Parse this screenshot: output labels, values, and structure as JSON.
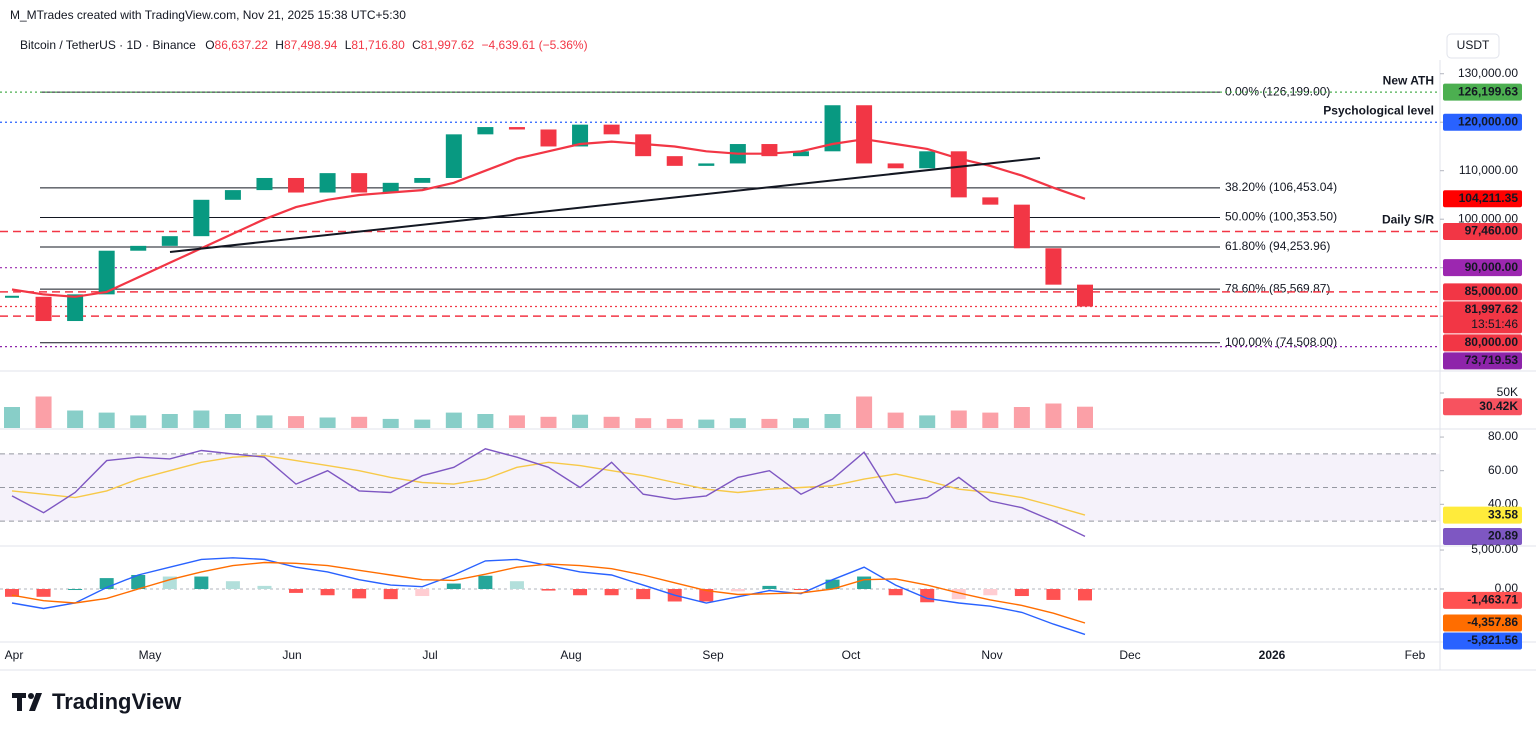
{
  "header": {
    "attribution": "M_MTrades created with TradingView.com, Nov 21, 2025 15:38 UTC+5:30",
    "symbol": "Bitcoin / TetherUS · 1D · Binance",
    "ohlc": [
      {
        "key": "O",
        "value": "86,637.22"
      },
      {
        "key": "H",
        "value": "87,498.94"
      },
      {
        "key": "L",
        "value": "81,716.80"
      },
      {
        "key": "C",
        "value": "81,997.62"
      }
    ],
    "change": "−4,639.61 (−5.36%)",
    "currency": "USDT"
  },
  "time_axis": [
    "Apr",
    "May",
    "Jun",
    "Jul",
    "Aug",
    "Sep",
    "Oct",
    "Nov",
    "Dec",
    "2026",
    "Feb"
  ],
  "chart_data": [
    {
      "type": "candles",
      "ylim": [
        68900,
        131800
      ],
      "yticks": [
        {
          "value": 130000,
          "label": "130,000.00"
        },
        {
          "value": 120000,
          "label": "120,000.00"
        },
        {
          "value": 110000,
          "label": "110,000.00"
        },
        {
          "value": 100000,
          "label": "100,000.00"
        },
        {
          "value": 90000,
          "label": "90,000.00"
        },
        {
          "value": 80000,
          "label": "80,000.00"
        }
      ],
      "series": [
        {
          "kind": "candles",
          "up_color": "#089981",
          "down_color": "#f23645",
          "values": [
            84000,
            79000,
            84500,
            93500,
            94500,
            96500,
            104000,
            106000,
            108500,
            105500,
            109500,
            105500,
            107500,
            108500,
            117500,
            119000,
            118500,
            115000,
            119500,
            117500,
            113000,
            111000,
            111500,
            115500,
            113000,
            114000,
            123500,
            111500,
            110500,
            114000,
            104500,
            103000,
            94000,
            86500,
            82000
          ]
        },
        {
          "kind": "line",
          "color": "#f23645",
          "values": [
            85500,
            84500,
            84000,
            85000,
            88000,
            91000,
            94000,
            97000,
            100000,
            102500,
            104000,
            105000,
            105500,
            106000,
            107500,
            110000,
            112500,
            114000,
            115500,
            116000,
            115500,
            115000,
            114000,
            113500,
            113500,
            114000,
            115500,
            116500,
            115500,
            114500,
            112500,
            111000,
            109000,
            106500,
            104200
          ]
        }
      ],
      "fib_levels": [
        {
          "value": 126199,
          "label": "0.00% (126,199.00)"
        },
        {
          "value": 106453.04,
          "label": "38.20% (106,453.04)"
        },
        {
          "value": 100353.5,
          "label": "50.00% (100,353.50)"
        },
        {
          "value": 94253.96,
          "label": "61.80% (94,253.96)"
        },
        {
          "value": 85569.87,
          "label": "78.60% (85,569.87)"
        },
        {
          "value": 74508,
          "label": "100.00% (74,508.00)"
        }
      ],
      "price_labels": [
        {
          "value": 126199.63,
          "label": "126,199.63",
          "color": "#4caf50",
          "line": "dotted",
          "note": "New ATH"
        },
        {
          "value": 120000,
          "label": "120,000.00",
          "color": "#2962ff",
          "line": "dotted",
          "note": "Psychological level"
        },
        {
          "value": 104211.35,
          "label": "104,211.35",
          "color": "#ff0000",
          "line": "none"
        },
        {
          "value": 97460,
          "label": "97,460.00",
          "color": "#f23645",
          "line": "dashed",
          "note": "Daily S/R"
        },
        {
          "value": 90000,
          "label": "90,000.00",
          "color": "#9c27b0",
          "line": "dotted"
        },
        {
          "value": 85000,
          "label": "85,000.00",
          "color": "#f23645",
          "line": "dashed"
        },
        {
          "value": 81997.62,
          "label": "81,997.62",
          "color": "#f23645",
          "line": "dotted",
          "countdown": "13:51:46"
        },
        {
          "value": 80000,
          "label": "80,000.00",
          "color": "#f23645",
          "line": "dashed"
        },
        {
          "value": 73719.53,
          "label": "73,719.53",
          "color": "#8e24aa",
          "line": "dotted"
        }
      ]
    },
    {
      "type": "volume",
      "ylim": [
        0,
        80000
      ],
      "yticks": [
        {
          "value": 50000,
          "label": "50K"
        }
      ],
      "up_color": "#26a69a",
      "down_color": "#f7525f",
      "values": [
        30000,
        45000,
        25000,
        22000,
        18000,
        20000,
        25000,
        20000,
        18000,
        17000,
        15000,
        16000,
        13000,
        12000,
        22000,
        20000,
        18000,
        16000,
        19000,
        16000,
        14000,
        13000,
        12000,
        14000,
        13000,
        14000,
        20000,
        45000,
        22000,
        18000,
        25000,
        22000,
        30000,
        35000,
        30420
      ],
      "price_labels": [
        {
          "value": 30420,
          "label": "30.42K",
          "color": "#f7525f"
        }
      ]
    },
    {
      "type": "rsi",
      "ylim": [
        15.8,
        84.2
      ],
      "yticks": [
        {
          "value": 80,
          "label": "80.00"
        },
        {
          "value": 60,
          "label": "60.00"
        },
        {
          "value": 40,
          "label": "40.00"
        }
      ],
      "bands": [
        70,
        50,
        30
      ],
      "band_color": "#7e57c2",
      "series": [
        {
          "color": "#7e57c2",
          "values": [
            45,
            35,
            47,
            66,
            68,
            67,
            72,
            70,
            68,
            52,
            60,
            48,
            47,
            57,
            62,
            73,
            68,
            62,
            50,
            65,
            46,
            43,
            45,
            56,
            60,
            46,
            55,
            71,
            41,
            44,
            56,
            42,
            38,
            30,
            20.89
          ]
        },
        {
          "color": "#f7c948",
          "values": [
            48,
            46,
            44,
            48,
            55,
            60,
            65,
            68,
            69,
            66,
            63,
            60,
            56,
            53,
            52,
            55,
            62,
            65,
            63,
            60,
            57,
            53,
            49,
            47,
            49,
            50,
            51,
            55,
            58,
            54,
            49,
            47,
            44,
            39,
            33.58
          ]
        }
      ],
      "price_labels": [
        {
          "value": 33.58,
          "label": "33.58",
          "color": "#ffeb3b",
          "text_color": "#131722"
        },
        {
          "value": 20.89,
          "label": "20.89",
          "color": "#7e57c2"
        }
      ]
    },
    {
      "type": "macd",
      "ylim": [
        -6540,
        5260
      ],
      "yticks": [
        {
          "value": 5000,
          "label": "5,000.00"
        },
        {
          "value": 0,
          "label": "0.00"
        }
      ],
      "histogram": [
        -1000,
        -1000,
        0,
        1400,
        1800,
        1600,
        1600,
        1000,
        400,
        -500,
        -800,
        -1200,
        -1300,
        -900,
        700,
        1700,
        1000,
        -200,
        -800,
        -800,
        -1300,
        -1600,
        -1600,
        -300,
        400,
        -100,
        1200,
        1600,
        -800,
        -1700,
        -1300,
        -800,
        -900,
        -1400,
        -1463.71
      ],
      "histogram_colors": [
        "#26a69a",
        "#b2dfdb",
        "#ff5252",
        "#ffcdd2"
      ],
      "series": [
        {
          "color": "#2962ff",
          "values": [
            -1800,
            -2500,
            -1800,
            200,
            1800,
            2800,
            3800,
            4000,
            3800,
            2800,
            2200,
            1200,
            500,
            300,
            1800,
            3600,
            3800,
            3000,
            2200,
            1800,
            500,
            -800,
            -1800,
            -1000,
            -200,
            -600,
            1200,
            2800,
            500,
            -1200,
            -1800,
            -2200,
            -3000,
            -4500,
            -5821.56
          ]
        },
        {
          "color": "#ff6d00",
          "values": [
            -800,
            -1500,
            -1800,
            -1200,
            0,
            1200,
            2200,
            3000,
            3400,
            3300,
            3000,
            2400,
            1800,
            1200,
            1100,
            1900,
            2800,
            3200,
            3000,
            2600,
            1800,
            800,
            -200,
            -700,
            -600,
            -500,
            0,
            1200,
            1300,
            500,
            -500,
            -1400,
            -2100,
            -3100,
            -4357.86
          ]
        }
      ],
      "price_labels": [
        {
          "value": -1463.71,
          "label": "-1,463.71",
          "color": "#ff5252"
        },
        {
          "value": -4357.86,
          "label": "-4,357.86",
          "color": "#ff6d00"
        },
        {
          "value": -5821.56,
          "label": "-5,821.56",
          "color": "#2962ff"
        }
      ]
    }
  ],
  "footer": {
    "brand": "TradingView"
  }
}
